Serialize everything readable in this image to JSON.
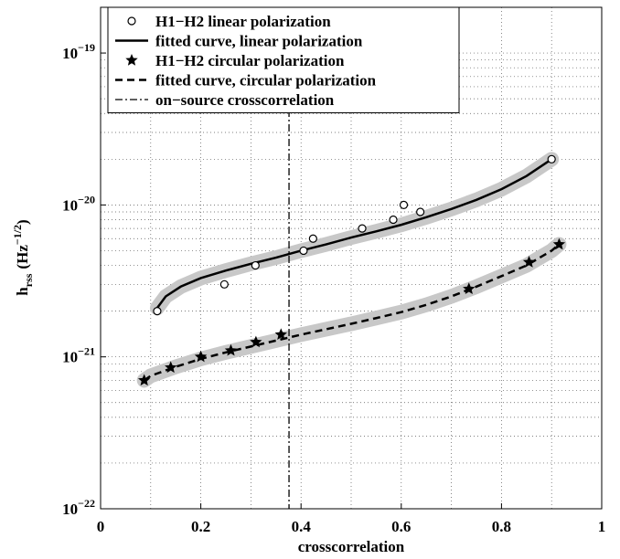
{
  "chart_data": {
    "type": "scatter",
    "xlabel": "crosscorrelation",
    "ylabel": {
      "main": "h",
      "sub": "rss",
      "unit": "(Hz",
      "sup": "−1/2",
      "close": ")"
    },
    "xlim": [
      0,
      1
    ],
    "xticks": [
      0,
      0.2,
      0.4,
      0.6,
      0.8,
      1
    ],
    "ylim": [
      1e-22,
      2e-19
    ],
    "log_y": true,
    "grid": true,
    "legend": "upper left",
    "yticks": [
      {
        "value": 1e-22,
        "label": "10−22"
      },
      {
        "value": 1e-21,
        "label": "10−21"
      },
      {
        "value": 1e-20,
        "label": "10−20"
      },
      {
        "value": 1e-19,
        "label": "10−19"
      }
    ],
    "series": [
      {
        "name": "H1−H2 linear polarization",
        "kind": "points",
        "marker": "circle",
        "color": "#000000",
        "x": [
          0.113,
          0.247,
          0.309,
          0.405,
          0.424,
          0.522,
          0.584,
          0.605,
          0.638,
          0.9
        ],
        "values": [
          2e-21,
          3e-21,
          4e-21,
          5e-21,
          6e-21,
          7e-21,
          8e-21,
          1e-20,
          9e-21,
          2e-20
        ]
      },
      {
        "name": "fitted curve, linear polarization",
        "kind": "line",
        "dash": "solid",
        "color": "#000000",
        "x": [
          0.113,
          0.13,
          0.16,
          0.2,
          0.25,
          0.3,
          0.35,
          0.4,
          0.45,
          0.5,
          0.55,
          0.6,
          0.65,
          0.7,
          0.75,
          0.8,
          0.85,
          0.9
        ],
        "values": [
          2.1e-21,
          2.5e-21,
          2.9e-21,
          3.3e-21,
          3.7e-21,
          4.1e-21,
          4.5e-21,
          5e-21,
          5.5e-21,
          6.1e-21,
          6.7e-21,
          7.4e-21,
          8.3e-21,
          9.4e-21,
          1.08e-20,
          1.27e-20,
          1.55e-20,
          2e-20
        ]
      },
      {
        "name": "H1−H2 circular polarization",
        "kind": "points",
        "marker": "star",
        "color": "#000000",
        "x": [
          0.087,
          0.14,
          0.2,
          0.26,
          0.31,
          0.36,
          0.735,
          0.855,
          0.915
        ],
        "values": [
          7e-22,
          8.5e-22,
          1e-21,
          1.1e-21,
          1.25e-21,
          1.4e-21,
          2.8e-21,
          4.2e-21,
          5.5e-21
        ]
      },
      {
        "name": "fitted curve, circular polarization",
        "kind": "line",
        "dash": "dashed",
        "color": "#000000",
        "x": [
          0.087,
          0.1,
          0.15,
          0.2,
          0.25,
          0.3,
          0.35,
          0.4,
          0.45,
          0.5,
          0.55,
          0.6,
          0.65,
          0.7,
          0.75,
          0.8,
          0.85,
          0.9,
          0.915
        ],
        "values": [
          7e-22,
          7.5e-22,
          8.6e-22,
          9.7e-22,
          1.07e-21,
          1.17e-21,
          1.28e-21,
          1.4e-21,
          1.52e-21,
          1.65e-21,
          1.8e-21,
          1.97e-21,
          2.2e-21,
          2.5e-21,
          2.9e-21,
          3.4e-21,
          4e-21,
          5e-21,
          5.5e-21
        ]
      },
      {
        "name": "on−source crosscorrelation",
        "kind": "vline",
        "dash": "dashdot",
        "color": "#000000",
        "x": 0.376
      }
    ]
  }
}
